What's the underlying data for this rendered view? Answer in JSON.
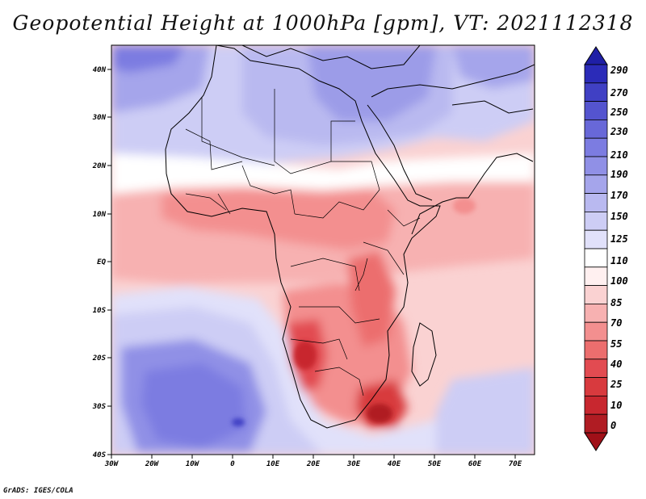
{
  "title": "Geopotential Height at 1000hPa [gpm], VT: 2021112318",
  "credit": "GrADS: IGES/COLA",
  "colors": {
    "bands": [
      "#b01c23",
      "#c8272f",
      "#d83a3e",
      "#e24b51",
      "#ec6e6e",
      "#f38f8f",
      "#f7b1b1",
      "#fad2d2",
      "#fff0f0",
      "#ffffff",
      "#e1e1fa",
      "#cdcdf5",
      "#b9b9f0",
      "#a5a5eb",
      "#9090e6",
      "#7c7ce1",
      "#6868d8",
      "#5454cf",
      "#4040c4",
      "#2b2bb8"
    ]
  },
  "lat_labels": [
    "40N",
    "30N",
    "20N",
    "10N",
    "EQ",
    "10S",
    "20S",
    "30S",
    "40S"
  ],
  "lon_labels": [
    "30W",
    "20W",
    "10W",
    "0",
    "10E",
    "20E",
    "30E",
    "40E",
    "50E",
    "60E",
    "70E"
  ],
  "colorbar": {
    "levels": [
      "290",
      "270",
      "250",
      "230",
      "210",
      "190",
      "170",
      "150",
      "125",
      "110",
      "100",
      "85",
      "70",
      "55",
      "40",
      "25",
      "10",
      "0"
    ]
  }
}
